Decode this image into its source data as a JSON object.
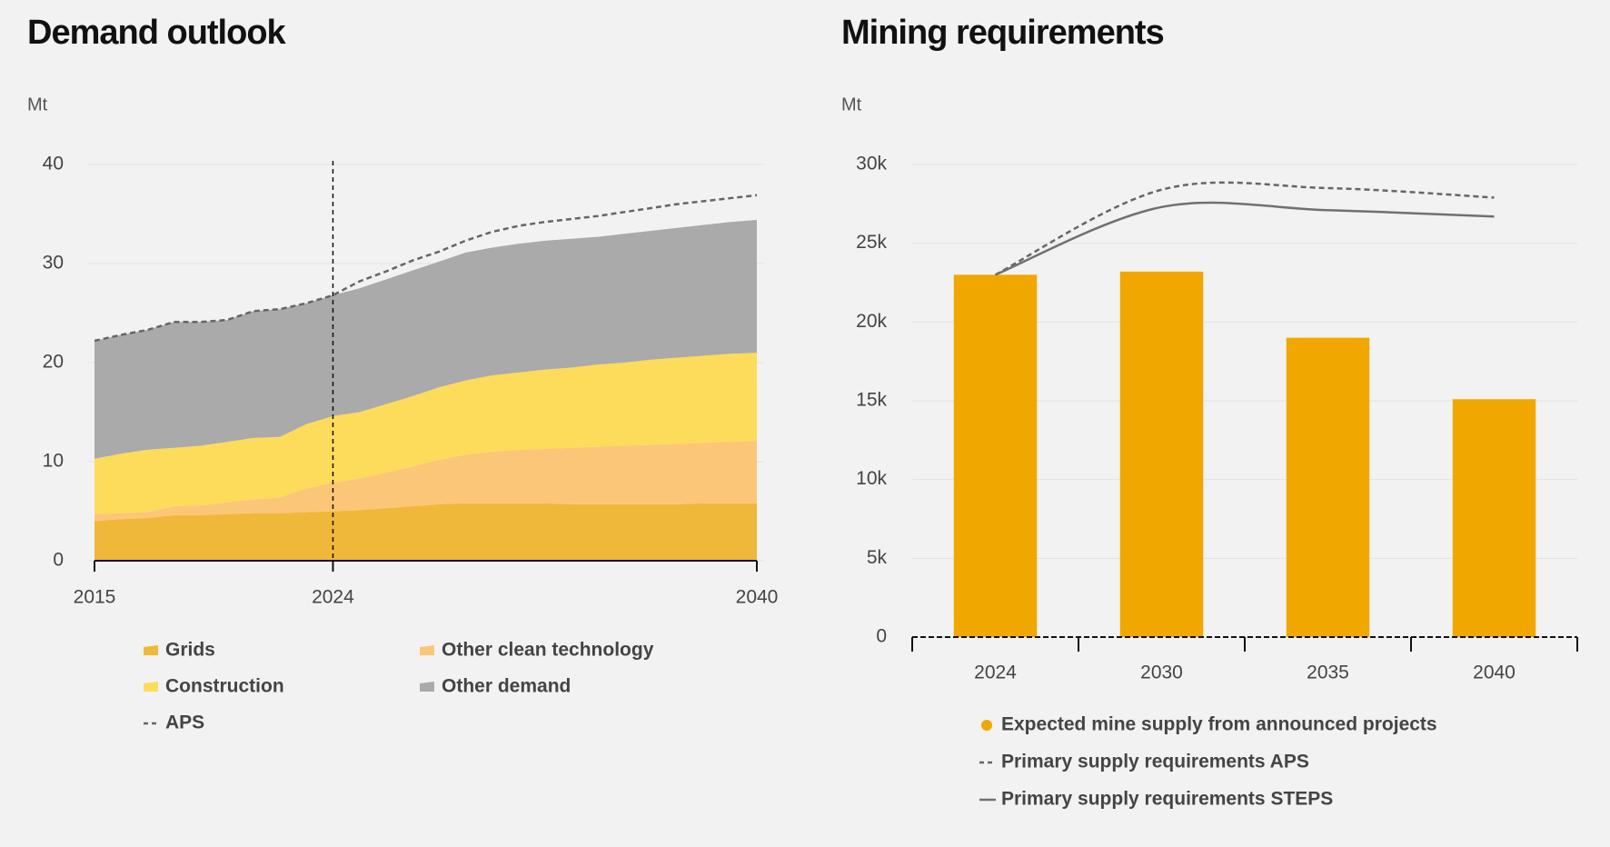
{
  "chart_data": [
    {
      "type": "area",
      "title": "Demand outlook",
      "y_label": "Mt",
      "stacked": true,
      "x": [
        2015,
        2016,
        2017,
        2018,
        2019,
        2020,
        2021,
        2022,
        2023,
        2024,
        2025,
        2026,
        2027,
        2028,
        2029,
        2030,
        2031,
        2032,
        2033,
        2034,
        2035,
        2036,
        2037,
        2038,
        2039,
        2040
      ],
      "xlim": [
        2015,
        2040
      ],
      "xticks": [
        2015,
        2024,
        2040
      ],
      "ylim": [
        0,
        40
      ],
      "yticks": [
        0,
        10,
        20,
        30,
        40
      ],
      "grid": true,
      "reference_line_x": 2024,
      "series": [
        {
          "name": "Grids",
          "color": "#f0b83a",
          "values": [
            4.0,
            4.2,
            4.3,
            4.6,
            4.6,
            4.7,
            4.8,
            4.8,
            4.9,
            5.0,
            5.1,
            5.3,
            5.5,
            5.7,
            5.8,
            5.8,
            5.8,
            5.8,
            5.7,
            5.7,
            5.7,
            5.7,
            5.7,
            5.8,
            5.8,
            5.8
          ]
        },
        {
          "name": "Other clean technology",
          "color": "#fbc677",
          "values": [
            0.7,
            0.6,
            0.6,
            0.9,
            1.0,
            1.2,
            1.4,
            1.6,
            2.4,
            2.9,
            3.2,
            3.6,
            4.0,
            4.5,
            4.9,
            5.2,
            5.4,
            5.5,
            5.7,
            5.8,
            5.9,
            6.0,
            6.1,
            6.1,
            6.2,
            6.3
          ]
        },
        {
          "name": "Construction",
          "color": "#fcdc5a",
          "values": [
            5.6,
            6.0,
            6.3,
            5.9,
            6.0,
            6.1,
            6.2,
            6.1,
            6.5,
            6.7,
            6.7,
            6.9,
            7.1,
            7.3,
            7.5,
            7.7,
            7.8,
            8.0,
            8.1,
            8.3,
            8.4,
            8.6,
            8.7,
            8.8,
            8.9,
            8.9
          ]
        },
        {
          "name": "Other demand",
          "color": "#aaaaaa",
          "values": [
            11.9,
            12.0,
            12.1,
            12.7,
            12.5,
            12.3,
            12.8,
            12.9,
            12.2,
            12.2,
            12.5,
            12.6,
            12.7,
            12.7,
            12.9,
            12.9,
            13.0,
            13.0,
            13.0,
            12.9,
            13.0,
            13.0,
            13.1,
            13.2,
            13.3,
            13.4
          ]
        },
        {
          "name": "APS",
          "type": "line",
          "dashed": true,
          "color": "#666666",
          "values": [
            22.2,
            22.8,
            23.3,
            24.1,
            24.1,
            24.3,
            25.2,
            25.4,
            26.0,
            26.8,
            28.2,
            29.2,
            30.3,
            31.2,
            32.3,
            33.2,
            33.8,
            34.2,
            34.5,
            34.8,
            35.2,
            35.6,
            36.0,
            36.3,
            36.6,
            36.9
          ]
        }
      ]
    },
    {
      "type": "bar",
      "title": "Mining requirements",
      "y_label": "Mt",
      "categories": [
        "2024",
        "2030",
        "2035",
        "2040"
      ],
      "ylim": [
        0,
        30000
      ],
      "yticks": [
        0,
        {
          "value": 5000,
          "label": "5k"
        },
        {
          "value": 10000,
          "label": "10k"
        },
        {
          "value": 15000,
          "label": "15k"
        },
        {
          "value": 20000,
          "label": "20k"
        },
        {
          "value": 25000,
          "label": "25k"
        },
        {
          "value": 30000,
          "label": "30k"
        }
      ],
      "grid": true,
      "series": [
        {
          "name": "Expected mine supply from announced projects",
          "type": "bar",
          "color": "#f0a800",
          "values": [
            23000,
            23200,
            19000,
            15100
          ]
        },
        {
          "name": "Primary supply requirements APS",
          "type": "line",
          "dashed": true,
          "color": "#666666",
          "values": [
            23000,
            28400,
            28500,
            27900
          ]
        },
        {
          "name": "Primary supply requirements STEPS",
          "type": "line",
          "dashed": false,
          "color": "#707070",
          "values": [
            23000,
            27300,
            27100,
            26700
          ]
        }
      ]
    }
  ]
}
